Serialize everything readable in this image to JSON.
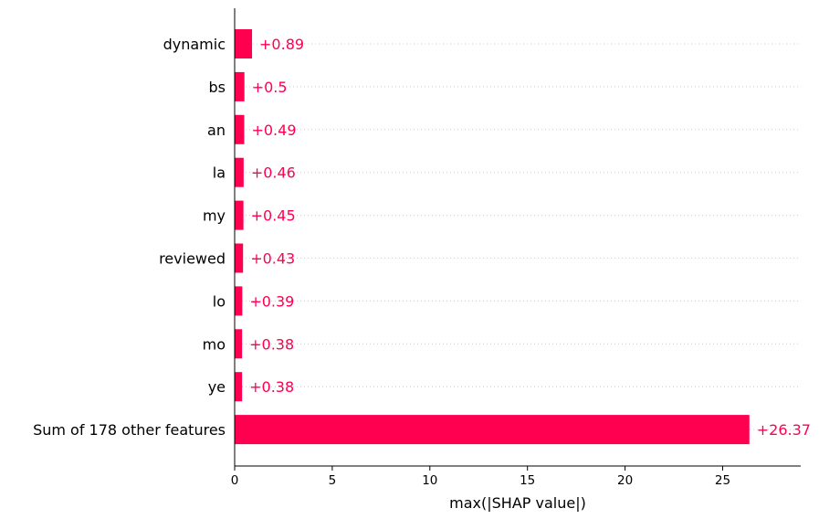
{
  "chart_data": {
    "type": "bar",
    "orientation": "horizontal",
    "categories": [
      "dynamic",
      "bs",
      "an",
      "la",
      "my",
      "reviewed",
      "lo",
      "mo",
      "ye",
      "Sum of 178 other features"
    ],
    "values": [
      0.89,
      0.5,
      0.49,
      0.46,
      0.45,
      0.43,
      0.39,
      0.38,
      0.38,
      26.37
    ],
    "value_labels": [
      "+0.89",
      "+0.5",
      "+0.49",
      "+0.46",
      "+0.45",
      "+0.43",
      "+0.39",
      "+0.38",
      "+0.38",
      "+26.37"
    ],
    "xlabel": "max(|SHAP value|)",
    "ylabel": "",
    "title": "",
    "xlim": [
      0,
      29
    ],
    "xticks": [
      0,
      5,
      10,
      15,
      20,
      25
    ],
    "grid": "horizontal dotted lines per category",
    "bar_color": "#ff0051",
    "label_color": "#ff0051"
  }
}
